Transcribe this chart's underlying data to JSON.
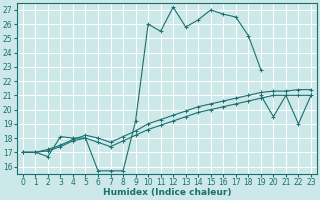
{
  "title": "",
  "xlabel": "Humidex (Indice chaleur)",
  "ylabel": "",
  "xlim": [
    -0.5,
    23.5
  ],
  "ylim": [
    15.5,
    27.5
  ],
  "xticks": [
    0,
    1,
    2,
    3,
    4,
    5,
    6,
    7,
    8,
    9,
    10,
    11,
    12,
    13,
    14,
    15,
    16,
    17,
    18,
    19,
    20,
    21,
    22,
    23
  ],
  "yticks": [
    16,
    17,
    18,
    19,
    20,
    21,
    22,
    23,
    24,
    25,
    26,
    27
  ],
  "bg_color": "#cde8e8",
  "grid_color": "#b0d8d8",
  "line_color": "#1a7070",
  "lines": [
    {
      "x": [
        0,
        1,
        2,
        3,
        4,
        5,
        6,
        7,
        8,
        9,
        10,
        11,
        12,
        13,
        14,
        15,
        16,
        17,
        18,
        19
      ],
      "y": [
        17.0,
        17.0,
        16.7,
        18.1,
        18.0,
        18.0,
        15.7,
        15.7,
        15.7,
        19.2,
        26.0,
        25.5,
        27.2,
        25.8,
        26.3,
        27.0,
        26.7,
        26.5,
        25.2,
        22.8
      ]
    },
    {
      "x": [
        0,
        1,
        2,
        3,
        4,
        5,
        6,
        7,
        8,
        9,
        10,
        11,
        12,
        13,
        14,
        15,
        16,
        17,
        18,
        19,
        20,
        21,
        22,
        23
      ],
      "y": [
        17.0,
        17.0,
        17.1,
        17.4,
        17.8,
        18.0,
        17.7,
        17.4,
        17.8,
        18.2,
        18.6,
        18.9,
        19.2,
        19.5,
        19.8,
        20.0,
        20.2,
        20.4,
        20.6,
        20.8,
        21.0,
        21.0,
        21.0,
        21.0
      ]
    },
    {
      "x": [
        0,
        1,
        2,
        3,
        4,
        5,
        6,
        7,
        8,
        9,
        10,
        11,
        12,
        13,
        14,
        15,
        16,
        17,
        18,
        19,
        20,
        21,
        22,
        23
      ],
      "y": [
        17.0,
        17.0,
        17.2,
        17.5,
        17.9,
        18.2,
        18.0,
        17.7,
        18.1,
        18.5,
        19.0,
        19.3,
        19.6,
        19.9,
        20.2,
        20.4,
        20.6,
        20.8,
        21.0,
        21.2,
        21.3,
        21.3,
        21.4,
        21.4
      ]
    },
    {
      "x": [
        19,
        20,
        21,
        22,
        23
      ],
      "y": [
        21.0,
        19.5,
        21.0,
        19.0,
        21.0
      ]
    }
  ],
  "tick_fontsize": 5.5,
  "label_fontsize": 6.5
}
